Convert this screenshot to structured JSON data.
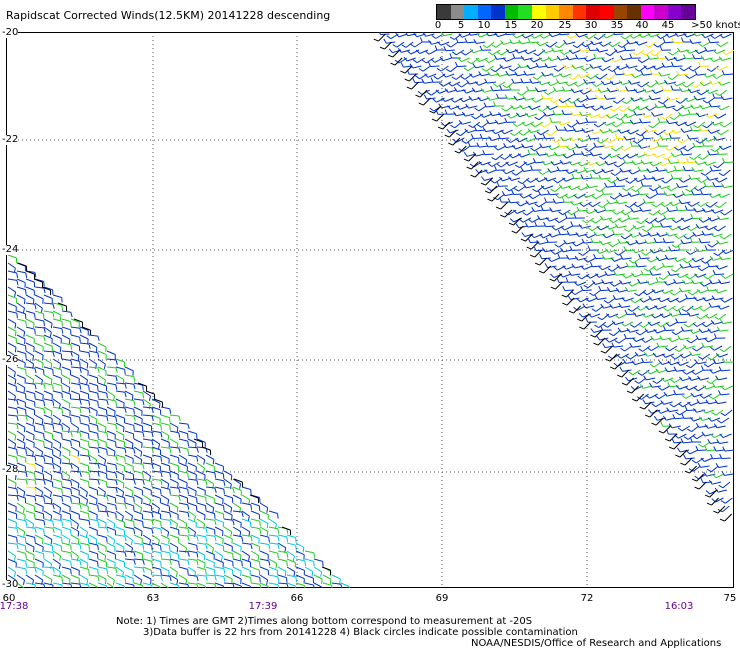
{
  "title": "Rapidscat Corrected Winds(12.5KM) 20141228 descending",
  "legend": {
    "ticks": [
      "0",
      "5",
      "10",
      "15",
      "20",
      "25",
      "30",
      "35",
      "40",
      "45",
      ">50 knots"
    ],
    "colors": [
      "#3a3a3a",
      "#8c8c8c",
      "#00b0ff",
      "#0066ff",
      "#0033cc",
      "#00bb00",
      "#22dd22",
      "#ffff00",
      "#ffcc00",
      "#ff8800",
      "#ff3300",
      "#dd0000",
      "#ff0000",
      "#994400",
      "#663300",
      "#ff00ff",
      "#cc00cc",
      "#8800cc",
      "#660099"
    ]
  },
  "map": {
    "lat_labels": [
      "-20",
      "-22",
      "-24",
      "-26",
      "-28",
      "-30"
    ],
    "lon_labels": [
      "60",
      "63",
      "66",
      "69",
      "72",
      "75"
    ],
    "time_labels": [
      "17:38",
      "17:39",
      "16:03"
    ],
    "grid": true,
    "wind_colors": {
      "blue": "#0033cc",
      "green": "#22cc22",
      "cyan": "#00c8e0",
      "yellow": "#ffe000",
      "black": "#000000"
    }
  },
  "notes": {
    "line1": "Note: 1) Times are GMT 2)Times along bottom correspond to measurement at -20S",
    "line2": "3)Data buffer is 22 hrs from 20141228 4) Black circles indicate possible contamination",
    "line3": "NOAA/NESDIS/Office of Research and Applications"
  }
}
